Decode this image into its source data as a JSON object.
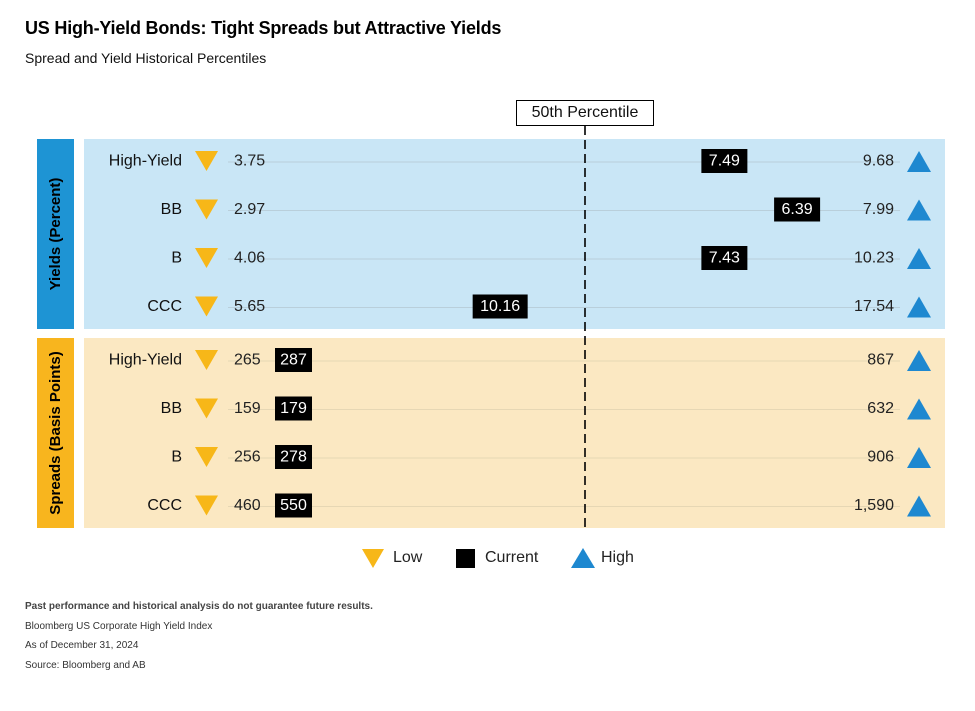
{
  "header": {
    "title": "US High-Yield Bonds: Tight Spreads but Attractive Yields",
    "subtitle": "Spread and Yield Historical Percentiles"
  },
  "reference_label": "50th Percentile",
  "legend": {
    "low": "Low",
    "current": "Current",
    "high": "High"
  },
  "colors": {
    "yields_bg": "#c9e6f6",
    "spreads_bg": "#fbe8c2",
    "yields_label_bg": "#1e94d4",
    "spreads_label_bg": "#f8b51e",
    "low_marker": "#f7b718",
    "high_marker": "#1e88d0",
    "current_marker": "#000000"
  },
  "footnotes": {
    "disclaimer": "Past performance and historical analysis do not guarantee future results.",
    "index": "Bloomberg US Corporate High Yield Index",
    "date": "As of December 31, 2024",
    "source": "Source: Bloomberg and AB"
  },
  "chart_data": {
    "type": "range",
    "percentile_axis": [
      0,
      100
    ],
    "reference_percentile": 50,
    "groups": [
      {
        "label": "Yields (Percent)",
        "rows": [
          {
            "name": "High-Yield",
            "low": "3.75",
            "current": "7.49",
            "high": "9.68",
            "current_percentile": 73
          },
          {
            "name": "BB",
            "low": "2.97",
            "current": "6.39",
            "high": "7.99",
            "current_percentile": 85
          },
          {
            "name": "B",
            "low": "4.06",
            "current": "7.43",
            "high": "10.23",
            "current_percentile": 73
          },
          {
            "name": "CCC",
            "low": "5.65",
            "current": "10.16",
            "high": "17.54",
            "current_percentile": 36
          }
        ]
      },
      {
        "label": "Spreads (Basis Points)",
        "rows": [
          {
            "name": "High-Yield",
            "low": "265",
            "current": "287",
            "high": "867",
            "current_percentile": 0
          },
          {
            "name": "BB",
            "low": "159",
            "current": "179",
            "high": "632",
            "current_percentile": 0
          },
          {
            "name": "B",
            "low": "256",
            "current": "278",
            "high": "906",
            "current_percentile": 0
          },
          {
            "name": "CCC",
            "low": "460",
            "current": "550",
            "high": "1,590",
            "current_percentile": 0
          }
        ]
      }
    ]
  }
}
